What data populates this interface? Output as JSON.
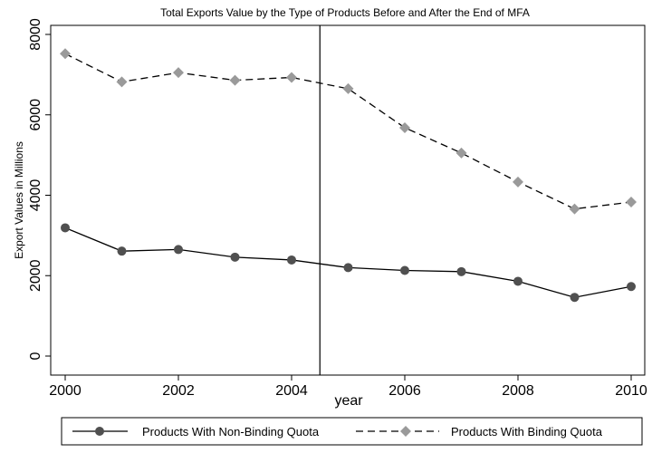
{
  "chart_data": {
    "type": "line",
    "title": "Total Exports Value by the Type of Products Before and After the End of MFA",
    "xlabel": "year",
    "ylabel": "Export Values in Millions",
    "x": [
      2000,
      2001,
      2002,
      2003,
      2004,
      2005,
      2006,
      2007,
      2008,
      2009,
      2010
    ],
    "x_ticks": [
      "2000",
      "2002",
      "2004",
      "2006",
      "2008",
      "2010"
    ],
    "y_ticks": [
      "0",
      "2000",
      "4000",
      "6000",
      "8000"
    ],
    "xlim": [
      2000,
      2010
    ],
    "ylim": [
      0,
      8000
    ],
    "vertical_line_x": 2004.5,
    "grid": false,
    "legend_position": "bottom",
    "series": [
      {
        "name": "Products With Non-Binding Quota",
        "values": [
          3190,
          2610,
          2650,
          2460,
          2390,
          2200,
          2130,
          2100,
          1860,
          1460,
          1730
        ],
        "color": "#000000",
        "marker": "circle",
        "marker_color": "#505050",
        "line_style": "solid"
      },
      {
        "name": "Products With Binding Quota",
        "values": [
          7520,
          6820,
          7050,
          6860,
          6930,
          6650,
          5680,
          5050,
          4330,
          3660,
          3830
        ],
        "color": "#000000",
        "marker": "diamond",
        "marker_color": "#9a9a9a",
        "line_style": "dashed"
      }
    ]
  }
}
